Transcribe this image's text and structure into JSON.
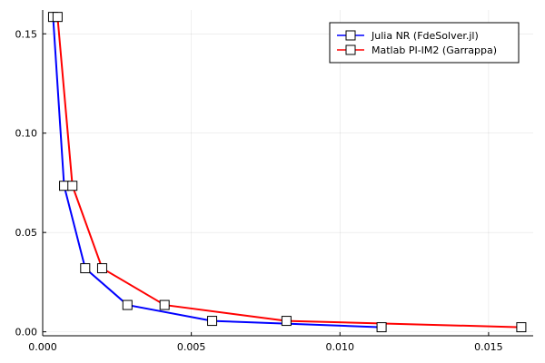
{
  "chart_data": {
    "type": "line",
    "title": "",
    "xlabel": "",
    "ylabel": "",
    "xlim": [
      0,
      0.0165
    ],
    "ylim": [
      -0.002,
      0.162
    ],
    "xticks": [
      0.0,
      0.005,
      0.01,
      0.015
    ],
    "xtick_labels": [
      "0.000",
      "0.005",
      "0.010",
      "0.015"
    ],
    "yticks": [
      0.0,
      0.05,
      0.1,
      0.15
    ],
    "ytick_labels": [
      "0.00",
      "0.05",
      "0.10",
      "0.15"
    ],
    "grid": true,
    "legend_position": "top-right",
    "series": [
      {
        "name": "Julia NR (FdeSolver.jl)",
        "color": "#0000ff",
        "marker": "square",
        "x": [
          0.00035,
          0.00072,
          0.00143,
          0.00285,
          0.0057,
          0.0114
        ],
        "y": [
          0.1585,
          0.0735,
          0.032,
          0.0135,
          0.0055,
          0.0023
        ]
      },
      {
        "name": "Matlab PI-IM2 (Garrappa)",
        "color": "#ff0000",
        "marker": "square",
        "x": [
          0.0005,
          0.001,
          0.002,
          0.0041,
          0.0082,
          0.0161
        ],
        "y": [
          0.1585,
          0.0735,
          0.032,
          0.0135,
          0.0055,
          0.0023
        ]
      }
    ]
  }
}
